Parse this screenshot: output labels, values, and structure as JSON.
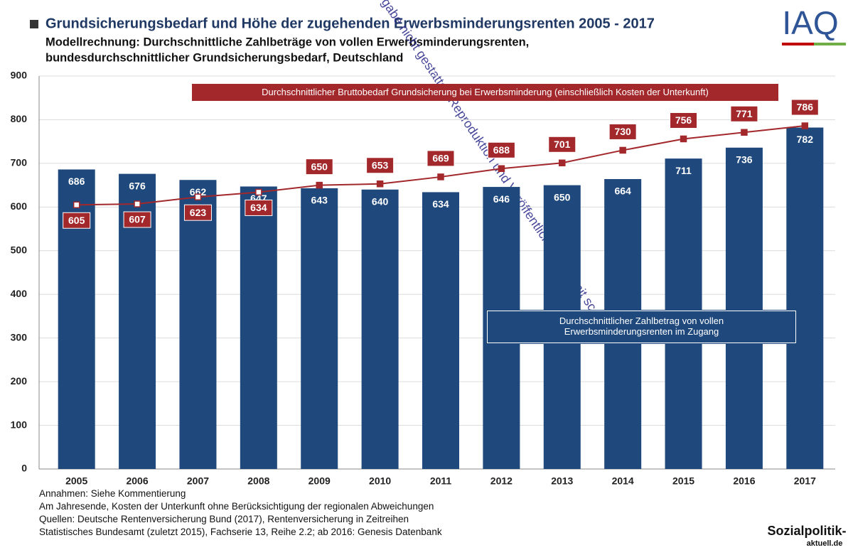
{
  "chart_data": {
    "type": "bar-line",
    "title": "Grundsicherungsbedarf und Höhe der zugehenden Erwerbsminderungsrenten 2005 - 2017",
    "subtitle": [
      "Modellrechnung: Durchschnittliche Zahlbeträge von vollen Erwerbsminderungsrenten,",
      "bundesdurchschnittlicher Grundsicherungsbedarf, Deutschland"
    ],
    "categories": [
      "2005",
      "2006",
      "2007",
      "2008",
      "2009",
      "2010",
      "2011",
      "2012",
      "2013",
      "2014",
      "2015",
      "2016",
      "2017"
    ],
    "series": [
      {
        "name": "Durchschnittlicher Zahlbetrag von vollen Erwerbsminderungsrenten im Zugang",
        "color": "#1f497d",
        "kind": "bar",
        "values": [
          686,
          676,
          662,
          647,
          643,
          640,
          634,
          646,
          650,
          664,
          711,
          736,
          782
        ]
      },
      {
        "name": "Durchschnittlicher Bruttobedarf Grundsicherung bei Erwerbsminderung (einschließlich Kosten der Unterkunft)",
        "color": "#a3282c",
        "kind": "line",
        "values": [
          605,
          607,
          623,
          634,
          650,
          653,
          669,
          688,
          701,
          730,
          756,
          771,
          786
        ]
      }
    ],
    "ylim": [
      0,
      900
    ],
    "yticks": [
      0,
      100,
      200,
      300,
      400,
      500,
      600,
      700,
      800,
      900
    ],
    "grid": true,
    "notes": [
      "Annahmen: Siehe Kommentierung",
      "Am Jahresende, Kosten der Unterkunft ohne Berücksichtigung der regionalen Abweichungen",
      "Quellen: Deutsche Rentenversicherung Bund (2017), Rentenversicherung in Zeitreihen",
      "Statistisches Bundesamt (zuletzt 2015), Fachserie 13, Reihe 2.2; ab 2016: Genesis Datenbank"
    ],
    "logo": "IAQ",
    "source_logo": [
      "Sozialpolitik-",
      "aktuell.de"
    ],
    "watermark": "gabe nicht gestattet. Reproduktion und Veröffentlichung nur mit sc"
  }
}
